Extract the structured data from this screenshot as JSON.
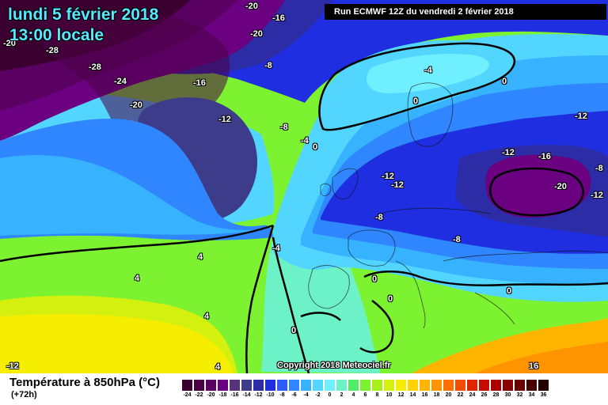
{
  "header": {
    "date": "lundi 5 février 2018",
    "time": "13:00 locale",
    "run": "Run ECMWF 12Z du vendredi 2 février 2018"
  },
  "copyright": "Copyright 2018 Meteociel.fr",
  "footer": {
    "title": "Température à 850hPa (°C)",
    "subtitle": "(+72h)"
  },
  "scale": {
    "values": [
      "-24",
      "-22",
      "-20",
      "-18",
      "-16",
      "-14",
      "-12",
      "-10",
      "-8",
      "-6",
      "-4",
      "-2",
      "0",
      "2",
      "4",
      "6",
      "8",
      "10",
      "12",
      "14",
      "16",
      "18",
      "20",
      "22",
      "24",
      "26",
      "28",
      "30",
      "32",
      "34",
      "36"
    ],
    "colors": [
      "#3a0030",
      "#4a0045",
      "#5a0062",
      "#6b0080",
      "#56347a",
      "#3c3c8a",
      "#2c2ca6",
      "#1e2ee0",
      "#2f5cff",
      "#2f86ff",
      "#36b2ff",
      "#52d6ff",
      "#70efff",
      "#6cf2c6",
      "#50ec6a",
      "#7cf230",
      "#a8f019",
      "#d4f00e",
      "#f6ee00",
      "#ffd200",
      "#ffb400",
      "#ff9400",
      "#ff7000",
      "#f44c00",
      "#e02400",
      "#c40c00",
      "#a80000",
      "#880000",
      "#6a0000",
      "#480000",
      "#240000"
    ]
  },
  "map_labels": [
    {
      "text": "-20",
      "color": "white"
    },
    {
      "text": "-16",
      "color": "white"
    },
    {
      "text": "-20",
      "color": "white"
    },
    {
      "text": "-20",
      "color": "white"
    },
    {
      "text": "-28",
      "color": "white"
    },
    {
      "text": "-28",
      "color": "white"
    },
    {
      "text": "-24",
      "color": "white"
    },
    {
      "text": "-16",
      "color": "white"
    },
    {
      "text": "-20",
      "color": "white"
    },
    {
      "text": "-8",
      "color": "white"
    },
    {
      "text": "-12",
      "color": "white"
    },
    {
      "text": "-8",
      "color": "white"
    },
    {
      "text": "-4",
      "color": "white"
    },
    {
      "text": "0",
      "color": "white"
    },
    {
      "text": "-4",
      "color": "white"
    },
    {
      "text": "0",
      "color": "white"
    },
    {
      "text": "0",
      "color": "white"
    },
    {
      "text": "-12",
      "color": "white"
    },
    {
      "text": "-12",
      "color": "white"
    },
    {
      "text": "-16",
      "color": "white"
    },
    {
      "text": "-8",
      "color": "white"
    },
    {
      "text": "-20",
      "color": "white"
    },
    {
      "text": "-12",
      "color": "white"
    },
    {
      "text": "-12",
      "color": "white"
    },
    {
      "text": "-12",
      "color": "white"
    },
    {
      "text": "-8",
      "color": "white"
    },
    {
      "text": "-8",
      "color": "white"
    },
    {
      "text": "-4",
      "color": "white"
    },
    {
      "text": "4",
      "color": "white"
    },
    {
      "text": "4",
      "color": "white"
    },
    {
      "text": "4",
      "color": "white"
    },
    {
      "text": "0",
      "color": "white"
    },
    {
      "text": "0",
      "color": "white"
    },
    {
      "text": "0",
      "color": "white"
    },
    {
      "text": "0",
      "color": "white"
    },
    {
      "text": "-12",
      "color": "white"
    },
    {
      "text": "4",
      "color": "white"
    },
    {
      "text": "16",
      "color": "white"
    }
  ]
}
